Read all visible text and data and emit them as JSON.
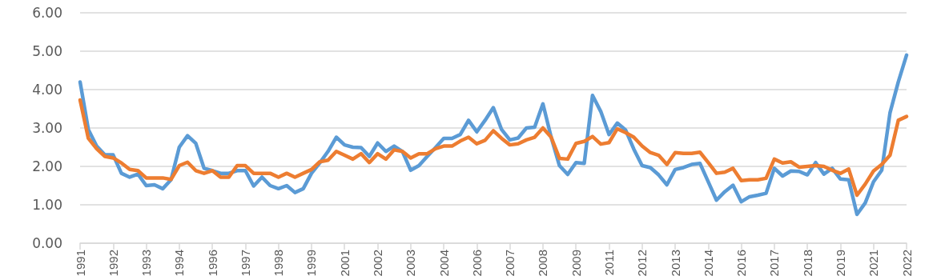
{
  "chart_data": {
    "type": "line",
    "categories": [
      "1991",
      null,
      null,
      null,
      "1992",
      null,
      null,
      null,
      "1993",
      null,
      null,
      null,
      "1994",
      null,
      null,
      null,
      "1996",
      null,
      null,
      null,
      "1997",
      null,
      null,
      null,
      "1998",
      null,
      null,
      null,
      "1999",
      null,
      null,
      null,
      "2001",
      null,
      null,
      null,
      "2002",
      null,
      null,
      null,
      "2003",
      null,
      null,
      null,
      "2004",
      null,
      null,
      null,
      "2006",
      null,
      null,
      null,
      "2007",
      null,
      null,
      null,
      "2008",
      null,
      null,
      null,
      "2009",
      null,
      null,
      null,
      "2011",
      null,
      null,
      null,
      "2012",
      null,
      null,
      null,
      "2013",
      null,
      null,
      null,
      "2014",
      null,
      null,
      null,
      "2016",
      null,
      null,
      null,
      "2017",
      null,
      null,
      null,
      "2018",
      null,
      null,
      null,
      "2019",
      null,
      null,
      null,
      "2021",
      null,
      null,
      null,
      "2022"
    ],
    "series": [
      {
        "color": "#5b9bd5",
        "values": [
          4.2,
          2.96,
          2.53,
          2.3,
          2.3,
          1.82,
          1.72,
          1.8,
          1.5,
          1.52,
          1.42,
          1.65,
          2.5,
          2.8,
          2.6,
          1.95,
          1.89,
          1.82,
          1.82,
          1.89,
          1.89,
          1.49,
          1.72,
          1.5,
          1.42,
          1.5,
          1.32,
          1.42,
          1.82,
          2.09,
          2.39,
          2.76,
          2.56,
          2.5,
          2.49,
          2.26,
          2.61,
          2.39,
          2.53,
          2.39,
          1.9,
          2.02,
          2.26,
          2.49,
          2.73,
          2.73,
          2.83,
          3.2,
          2.9,
          3.2,
          3.53,
          2.96,
          2.69,
          2.74,
          3.0,
          3.02,
          3.63,
          2.76,
          2.02,
          1.79,
          2.1,
          2.08,
          3.85,
          3.43,
          2.83,
          3.13,
          2.95,
          2.45,
          2.02,
          1.97,
          1.78,
          1.52,
          1.92,
          1.97,
          2.05,
          2.08,
          1.6,
          1.12,
          1.34,
          1.51,
          1.08,
          1.21,
          1.25,
          1.3,
          1.95,
          1.75,
          1.88,
          1.87,
          1.78,
          2.1,
          1.8,
          1.95,
          1.67,
          1.65,
          0.75,
          1.05,
          1.6,
          1.9,
          3.4,
          4.2,
          4.9
        ]
      },
      {
        "color": "#ed7d31",
        "values": [
          3.73,
          2.73,
          2.46,
          2.26,
          2.22,
          2.09,
          1.92,
          1.89,
          1.7,
          1.7,
          1.7,
          1.66,
          2.02,
          2.11,
          1.89,
          1.82,
          1.89,
          1.72,
          1.72,
          2.02,
          2.02,
          1.82,
          1.82,
          1.82,
          1.72,
          1.82,
          1.72,
          1.82,
          1.92,
          2.12,
          2.16,
          2.39,
          2.29,
          2.19,
          2.33,
          2.1,
          2.33,
          2.19,
          2.43,
          2.39,
          2.22,
          2.33,
          2.33,
          2.46,
          2.53,
          2.53,
          2.66,
          2.76,
          2.59,
          2.68,
          2.93,
          2.73,
          2.56,
          2.59,
          2.69,
          2.76,
          3.0,
          2.76,
          2.21,
          2.19,
          2.6,
          2.65,
          2.78,
          2.58,
          2.62,
          2.98,
          2.88,
          2.76,
          2.53,
          2.36,
          2.29,
          2.05,
          2.36,
          2.34,
          2.34,
          2.37,
          2.1,
          1.82,
          1.85,
          1.95,
          1.63,
          1.65,
          1.65,
          1.69,
          2.19,
          2.09,
          2.12,
          1.98,
          2.0,
          2.02,
          2.0,
          1.9,
          1.82,
          1.93,
          1.25,
          1.54,
          1.88,
          2.05,
          2.29,
          3.2,
          3.3
        ]
      }
    ],
    "ylim": [
      0,
      6
    ],
    "yticks": [
      {
        "value": 0,
        "label": "0.00"
      },
      {
        "value": 1,
        "label": "1.00"
      },
      {
        "value": 2,
        "label": "2.00"
      },
      {
        "value": 3,
        "label": "3.00"
      },
      {
        "value": 4,
        "label": "4.00"
      },
      {
        "value": 5,
        "label": "5.00"
      },
      {
        "value": 6,
        "label": "6.00"
      }
    ],
    "grid": "y",
    "marker": "none",
    "line_style": "solid"
  }
}
